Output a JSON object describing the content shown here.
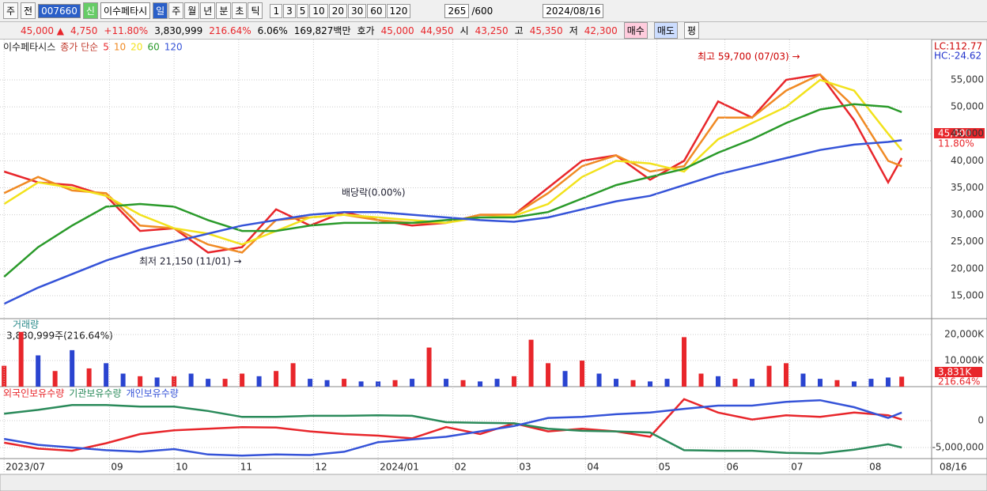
{
  "toolbar": {
    "market": "주",
    "prev": "전",
    "code": "007660",
    "new_badge": "신",
    "name": "이수페타시",
    "periods": [
      "일",
      "주",
      "월",
      "년",
      "분",
      "초",
      "틱"
    ],
    "intervals": [
      "1",
      "3",
      "5",
      "10",
      "20",
      "30",
      "60",
      "120"
    ],
    "count": "265",
    "max_count": "/600",
    "date": "2024/08/16"
  },
  "quote": {
    "price": "45,000 ▲",
    "change": "4,750",
    "change_pct": "+11.80%",
    "volume": "3,830,999",
    "volume_ratio": "216.64%",
    "turnover": "6.06%",
    "amount": "169,827백만",
    "ask_label": "호가",
    "ask": "45,000",
    "bid": "44,950",
    "open_label": "시",
    "open": "43,250",
    "high_label": "고",
    "high": "45,350",
    "low_label": "저",
    "low": "42,300",
    "buy": "매수",
    "sell": "매도",
    "avg": "평"
  },
  "chart_data": [
    {
      "type": "line",
      "title": "이수페타시스",
      "legend_label": "종가 단순",
      "lc_label": "LC:112.77",
      "hc_label": "HC:-24.62",
      "price_tag": "45,000",
      "pct_tag": "11.80%",
      "annotations": [
        "최고 59,700 (07/03) →",
        "최저 21,150 (11/01) →",
        "배당락(0.00%)"
      ],
      "xlim": [
        -1.2,
        272.8
      ],
      "ylim": [
        10750,
        62470
      ],
      "yticks": [
        {
          "value": 15000,
          "label": "15,000"
        },
        {
          "value": 20000,
          "label": "20,000"
        },
        {
          "value": 25000,
          "label": "25,000"
        },
        {
          "value": 30000,
          "label": "30,000"
        },
        {
          "value": 35000,
          "label": "35,000"
        },
        {
          "value": 40000,
          "label": "40,000"
        },
        {
          "value": 45000,
          "label": "45,000"
        },
        {
          "value": 50000,
          "label": "50,000"
        },
        {
          "value": 55000,
          "label": "55,000"
        }
      ],
      "grid": true,
      "x": [
        0,
        10,
        20,
        30,
        40,
        50,
        60,
        70,
        80,
        90,
        100,
        110,
        120,
        130,
        140,
        150,
        160,
        170,
        180,
        190,
        200,
        210,
        220,
        230,
        240,
        250,
        260,
        264
      ],
      "series": [
        {
          "name": "5",
          "color": "#e8262b",
          "values": [
            38000,
            36000,
            35500,
            33500,
            27000,
            27500,
            23000,
            24000,
            31000,
            28000,
            30500,
            29000,
            28000,
            28500,
            30000,
            30000,
            35000,
            40000,
            41000,
            36500,
            40000,
            51000,
            48000,
            55000,
            56000,
            47500,
            36000,
            40500
          ]
        },
        {
          "name": "10",
          "color": "#f08a24",
          "values": [
            34000,
            37000,
            34500,
            34000,
            28000,
            27500,
            24500,
            23000,
            29000,
            29500,
            30000,
            29000,
            28500,
            28500,
            30000,
            30000,
            34000,
            39000,
            41000,
            38000,
            39000,
            48000,
            48000,
            53000,
            56000,
            50000,
            40000,
            39000
          ]
        },
        {
          "name": "20",
          "color": "#f2e21c",
          "values": [
            32000,
            36000,
            35000,
            33500,
            30000,
            27500,
            26500,
            24500,
            27000,
            29500,
            30000,
            29500,
            29000,
            28500,
            29500,
            29800,
            32000,
            37000,
            40000,
            39500,
            38000,
            44000,
            47000,
            50000,
            55000,
            53000,
            45000,
            42000
          ]
        },
        {
          "name": "60",
          "color": "#2a9a2a",
          "values": [
            18500,
            24000,
            28000,
            31500,
            32000,
            31500,
            29000,
            27000,
            27000,
            28000,
            28500,
            28500,
            28500,
            29000,
            29500,
            29500,
            30500,
            33000,
            35500,
            37000,
            38500,
            41500,
            44000,
            47000,
            49500,
            50500,
            50000,
            49000
          ]
        },
        {
          "name": "120",
          "color": "#3553d8",
          "values": [
            13500,
            16500,
            19000,
            21500,
            23500,
            25000,
            26500,
            28000,
            29000,
            30000,
            30500,
            30500,
            30000,
            29500,
            29000,
            28700,
            29500,
            31000,
            32500,
            33500,
            35500,
            37500,
            39000,
            40500,
            42000,
            43000,
            43500,
            43800
          ]
        }
      ]
    },
    {
      "type": "bar",
      "title": "거래량",
      "value_label": "3,830,999주(216.64%)",
      "current_tag": "3,831K",
      "pct_tag": "216.64%",
      "xlim": [
        -1.2,
        272.8
      ],
      "ylim": [
        0,
        25800
      ],
      "yticks": [
        {
          "value": 10000,
          "label": "10,000K"
        },
        {
          "value": 20000,
          "label": "20,000K"
        }
      ],
      "x": [
        0,
        5,
        10,
        15,
        20,
        25,
        30,
        35,
        40,
        45,
        50,
        55,
        60,
        65,
        70,
        75,
        80,
        85,
        90,
        95,
        100,
        105,
        110,
        115,
        120,
        125,
        130,
        135,
        140,
        145,
        150,
        155,
        160,
        165,
        170,
        175,
        180,
        185,
        190,
        195,
        200,
        205,
        210,
        215,
        220,
        225,
        230,
        235,
        240,
        245,
        250,
        255,
        260,
        264
      ],
      "values": [
        8000,
        21000,
        12000,
        6000,
        14000,
        7000,
        9000,
        5000,
        4000,
        3500,
        4000,
        5000,
        3000,
        3000,
        5000,
        4000,
        6000,
        9000,
        3000,
        2500,
        3000,
        2000,
        2000,
        2500,
        3000,
        15000,
        3000,
        2500,
        2000,
        3000,
        4000,
        18000,
        9000,
        6000,
        10000,
        5000,
        3000,
        2500,
        2000,
        3000,
        19000,
        5000,
        4000,
        3000,
        3000,
        8000,
        9000,
        5000,
        3000,
        2500,
        2000,
        3000,
        3500,
        3831
      ],
      "colors": [
        "#e8262b",
        "#e8262b",
        "#2a44d0",
        "#e8262b",
        "#2a44d0",
        "#e8262b",
        "#2a44d0",
        "#2a44d0",
        "#e8262b",
        "#2a44d0",
        "#e8262b",
        "#2a44d0",
        "#2a44d0",
        "#e8262b",
        "#e8262b",
        "#2a44d0",
        "#e8262b",
        "#e8262b",
        "#2a44d0",
        "#2a44d0",
        "#e8262b",
        "#2a44d0",
        "#2a44d0",
        "#e8262b",
        "#2a44d0",
        "#e8262b",
        "#2a44d0",
        "#e8262b",
        "#2a44d0",
        "#2a44d0",
        "#e8262b",
        "#e8262b",
        "#e8262b",
        "#2a44d0",
        "#e8262b",
        "#2a44d0",
        "#2a44d0",
        "#e8262b",
        "#2a44d0",
        "#2a44d0",
        "#e8262b",
        "#e8262b",
        "#2a44d0",
        "#e8262b",
        "#2a44d0",
        "#e8262b",
        "#e8262b",
        "#2a44d0",
        "#2a44d0",
        "#e8262b",
        "#2a44d0",
        "#2a44d0",
        "#2a44d0",
        "#e8262b"
      ]
    },
    {
      "type": "line",
      "xlim": [
        -1.2,
        272.8
      ],
      "ylim": [
        -7060000,
        6180000
      ],
      "yticks": [
        0,
        {
          "value": -5000000,
          "label": "-5,000,000"
        }
      ],
      "xticks": [
        {
          "value": 0,
          "label": "2023/07"
        },
        {
          "value": 31,
          "label": "09"
        },
        {
          "value": 50,
          "label": "10"
        },
        {
          "value": 69,
          "label": "11"
        },
        {
          "value": 91,
          "label": "12"
        },
        {
          "value": 110,
          "label": "2024/01"
        },
        {
          "value": 132,
          "label": "02"
        },
        {
          "value": 151,
          "label": "03"
        },
        {
          "value": 171,
          "label": "04"
        },
        {
          "value": 192,
          "label": "05"
        },
        {
          "value": 212,
          "label": "06"
        },
        {
          "value": 231,
          "label": "07"
        },
        {
          "value": 254,
          "label": "08"
        }
      ],
      "current_date_label": "08/16",
      "x": [
        0,
        10,
        20,
        30,
        40,
        50,
        60,
        70,
        80,
        90,
        100,
        110,
        120,
        130,
        140,
        150,
        160,
        170,
        180,
        190,
        200,
        210,
        220,
        230,
        240,
        250,
        260,
        264
      ],
      "series": [
        {
          "name": "외국인보유수량",
          "color": "#e8262b",
          "values": [
            -4100000,
            -5200000,
            -5600000,
            -4200000,
            -2500000,
            -1800000,
            -1500000,
            -1200000,
            -1300000,
            -2000000,
            -2500000,
            -2800000,
            -3300000,
            -1200000,
            -2500000,
            -500000,
            -2000000,
            -1500000,
            -2000000,
            -3000000,
            4000000,
            1500000,
            200000,
            1000000,
            700000,
            1500000,
            1000000,
            200000
          ]
        },
        {
          "name": "기관보유수량",
          "color": "#2a8a5a",
          "values": [
            1300000,
            2000000,
            2900000,
            2900000,
            2600000,
            2600000,
            1800000,
            700000,
            700000,
            900000,
            900000,
            1000000,
            900000,
            -300000,
            -400000,
            -500000,
            -1500000,
            -1900000,
            -2000000,
            -2200000,
            -5500000,
            -5600000,
            -5600000,
            -6000000,
            -6100000,
            -5400000,
            -4400000,
            -5000000
          ]
        },
        {
          "name": "개인보유수량",
          "color": "#3553d8",
          "values": [
            -3400000,
            -4500000,
            -5000000,
            -5500000,
            -5800000,
            -5300000,
            -6300000,
            -6500000,
            -6300000,
            -6400000,
            -5800000,
            -4000000,
            -3500000,
            -3000000,
            -2000000,
            -1000000,
            500000,
            700000,
            1200000,
            1500000,
            2200000,
            2800000,
            2800000,
            3500000,
            3800000,
            2500000,
            500000,
            1500000
          ]
        }
      ]
    }
  ]
}
